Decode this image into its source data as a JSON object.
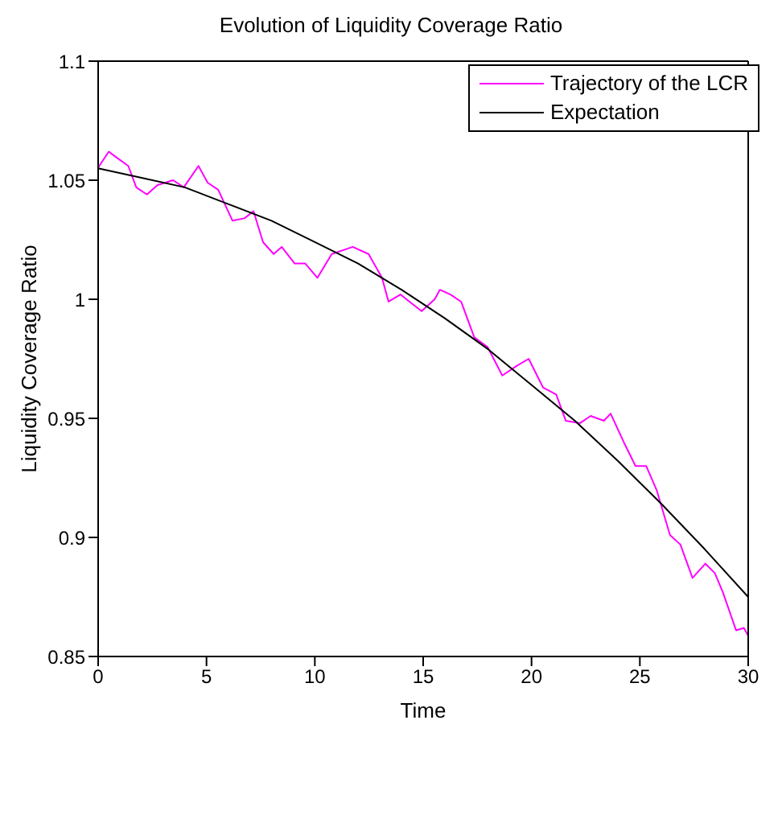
{
  "chart_data": {
    "type": "line",
    "title": "Evolution of Liquidity Coverage Ratio",
    "xlabel": "Time",
    "ylabel": "Liquidity Coverage Ratio",
    "xlim": [
      0,
      30
    ],
    "xticks": [
      0,
      5,
      10,
      15,
      20,
      25,
      30
    ],
    "ylim": [
      0.85,
      1.1
    ],
    "yticks": [
      0.85,
      0.9,
      0.95,
      1,
      1.05,
      1.1
    ],
    "legend": "top right",
    "marker": "none",
    "line_style": "solid",
    "series": [
      {
        "name": "Trajectory of the LCR",
        "color": "#ff00ff",
        "x": [
          0,
          0.05,
          0.49,
          0.78,
          1.39,
          1.76,
          2.25,
          2.74,
          3.46,
          3.95,
          4.63,
          5.05,
          5.54,
          6.2,
          6.75,
          7.17,
          7.61,
          8.1,
          8.47,
          9.07,
          9.56,
          10.12,
          10.78,
          11.75,
          12.48,
          13.1,
          13.4,
          13.95,
          14.93,
          15.53,
          15.77,
          16.26,
          16.75,
          17.36,
          17.97,
          18.65,
          19.31,
          19.87,
          20.53,
          21.14,
          21.58,
          22.24,
          22.73,
          23.34,
          23.65,
          24.31,
          24.8,
          25.29,
          25.77,
          26.39,
          26.87,
          27.43,
          28.02,
          28.46,
          28.83,
          29.44,
          29.8,
          29.98
        ],
        "values": [
          1.055,
          1.056,
          1.062,
          1.06,
          1.056,
          1.047,
          1.044,
          1.048,
          1.05,
          1.047,
          1.056,
          1.049,
          1.046,
          1.033,
          1.034,
          1.037,
          1.024,
          1.019,
          1.022,
          1.015,
          1.015,
          1.009,
          1.019,
          1.022,
          1.019,
          1.009,
          0.999,
          1.002,
          0.995,
          1,
          1.004,
          1.002,
          0.999,
          0.984,
          0.98,
          0.968,
          0.972,
          0.975,
          0.963,
          0.96,
          0.949,
          0.948,
          0.951,
          0.949,
          0.952,
          0.939,
          0.93,
          0.93,
          0.92,
          0.901,
          0.897,
          0.883,
          0.889,
          0.885,
          0.877,
          0.861,
          0.862,
          0.859
        ]
      },
      {
        "name": "Expectation",
        "color": "#000000",
        "x": [
          0,
          2,
          4,
          6,
          8,
          10,
          12,
          14,
          16,
          18,
          20,
          22,
          24,
          26,
          28,
          30
        ],
        "values": [
          1.055,
          1.051,
          1.047,
          1.04,
          1.033,
          1.024,
          1.015,
          1.004,
          0.992,
          0.979,
          0.964,
          0.949,
          0.932,
          0.914,
          0.895,
          0.875
        ]
      }
    ]
  }
}
